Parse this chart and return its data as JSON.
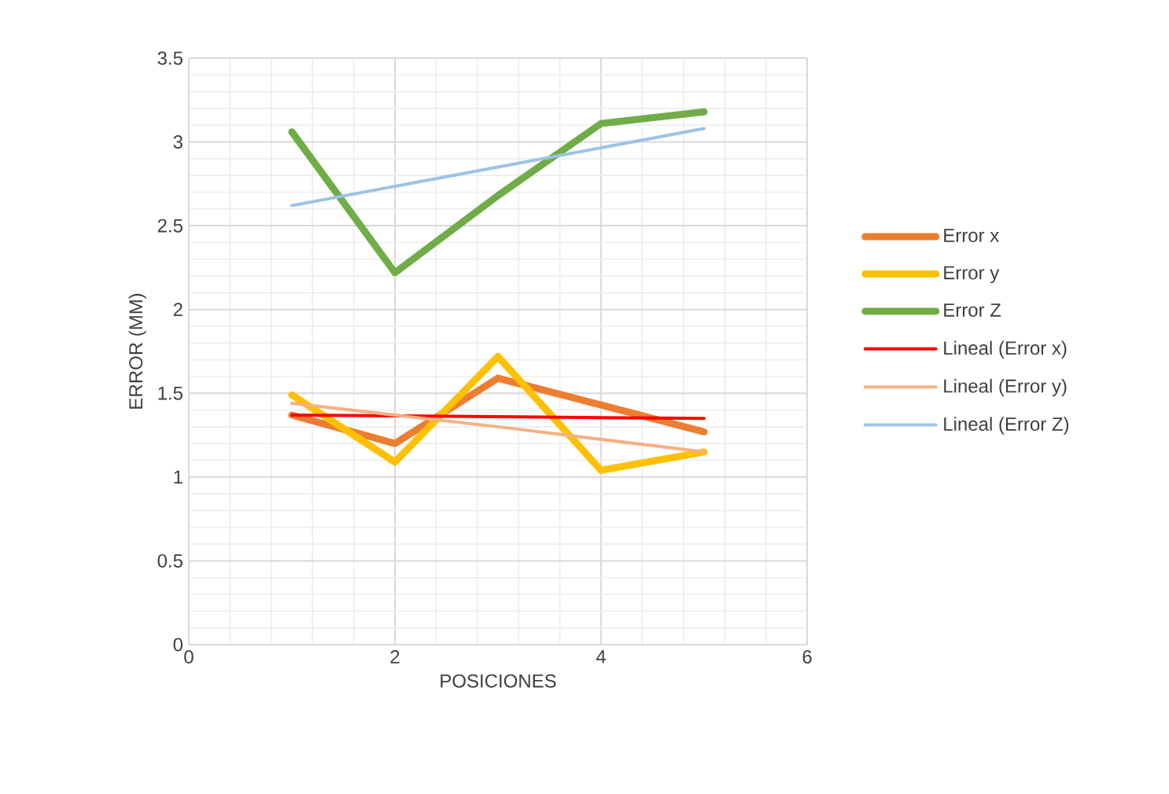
{
  "chart_data": {
    "type": "line",
    "xlabel": "POSICIONES",
    "ylabel": "ERROR (MM)",
    "x": [
      1,
      2,
      3,
      4,
      5
    ],
    "xlim": [
      0,
      6
    ],
    "xticks": [
      0,
      2,
      4,
      6
    ],
    "ylim": [
      0,
      3.5
    ],
    "yticks": [
      0,
      0.5,
      1,
      1.5,
      2,
      2.5,
      3,
      3.5
    ],
    "grid": true,
    "legend": "right",
    "line_style": "solid",
    "marker": "none",
    "series": [
      {
        "name": "Error x",
        "color": "#ed7d31",
        "values": [
          1.37,
          1.2,
          1.59,
          1.43,
          1.27
        ]
      },
      {
        "name": "Error  y",
        "color": "#ffc000",
        "values": [
          1.49,
          1.09,
          1.72,
          1.04,
          1.15
        ]
      },
      {
        "name": "Error Z",
        "color": "#70ad47",
        "values": [
          3.06,
          2.22,
          2.68,
          3.11,
          3.18
        ]
      },
      {
        "name": "Lineal (Error x)",
        "color": "#ff0000",
        "x": [
          1,
          3,
          5
        ],
        "values": [
          1.37,
          1.36,
          1.35
        ]
      },
      {
        "name": "Lineal (Error  y)",
        "color": "#f4b183",
        "x": [
          1,
          3,
          5
        ],
        "values": [
          1.44,
          1.3,
          1.15
        ]
      },
      {
        "name": "Lineal (Error Z)",
        "color": "#9dc3e6",
        "x": [
          1,
          3,
          5
        ],
        "values": [
          2.62,
          2.85,
          3.08
        ]
      }
    ]
  }
}
